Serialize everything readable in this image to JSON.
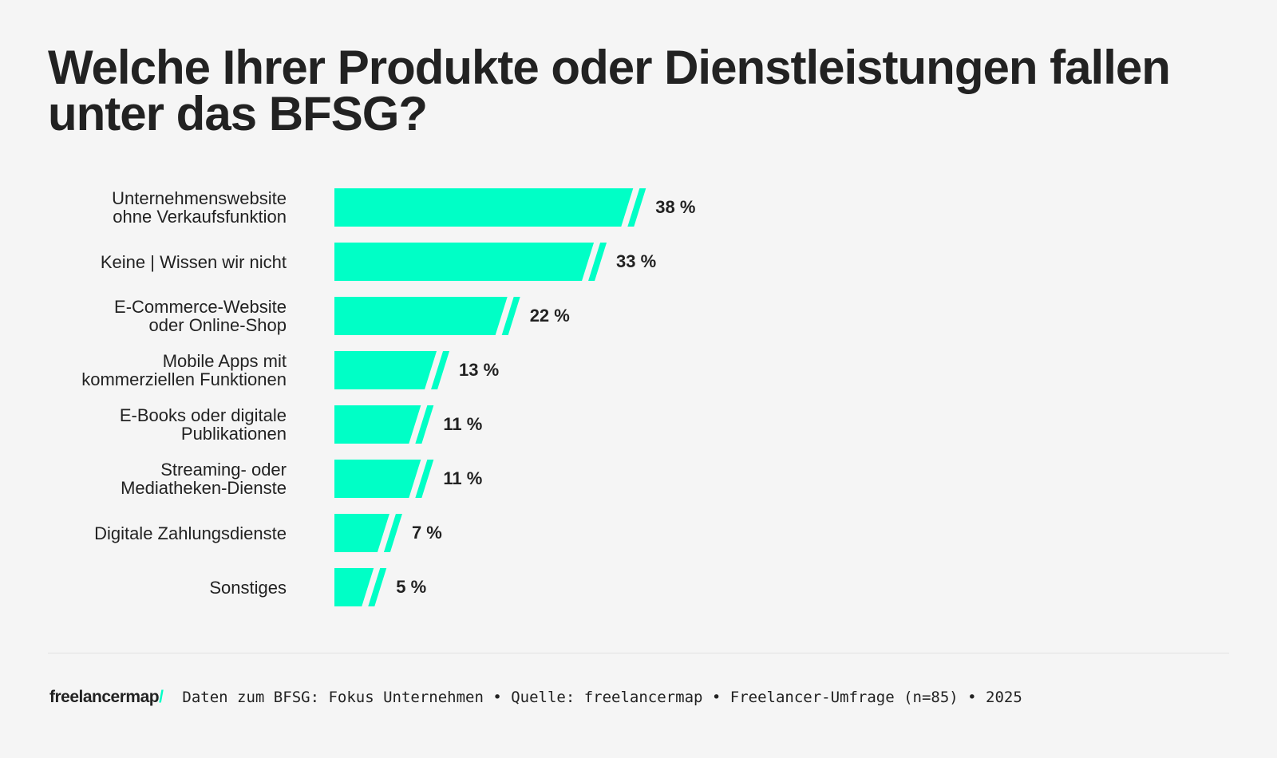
{
  "chart_data": {
    "type": "bar",
    "orientation": "horizontal",
    "title": "Welche Ihrer Produkte oder Dienstleistungen fallen unter das BFSG?",
    "categories": [
      "Unternehmenswebsite\nohne Verkaufsfunktion",
      "Keine | Wissen wir nicht",
      "E-Commerce-Website\noder Online-Shop",
      "Mobile Apps mit\nkommerziellen Funktionen",
      "E-Books oder digitale\nPublikationen",
      "Streaming- oder\nMediatheken-Dienste",
      "Digitale Zahlungsdienste",
      "Sonstiges"
    ],
    "values": [
      38,
      33,
      22,
      13,
      11,
      11,
      7,
      5
    ],
    "value_labels": [
      "38 %",
      "33 %",
      "22 %",
      "13 %",
      "11 %",
      "11 %",
      "7 %",
      "5 %"
    ],
    "unit": "%",
    "grid": false,
    "bar_color": "#00ffc6"
  },
  "footer": {
    "logo": "freelancermap",
    "logo_slash": "/",
    "source": "Daten zum BFSG: Fokus Unternehmen • Quelle: freelancermap • Freelancer-Umfrage (n=85) • 2025"
  }
}
